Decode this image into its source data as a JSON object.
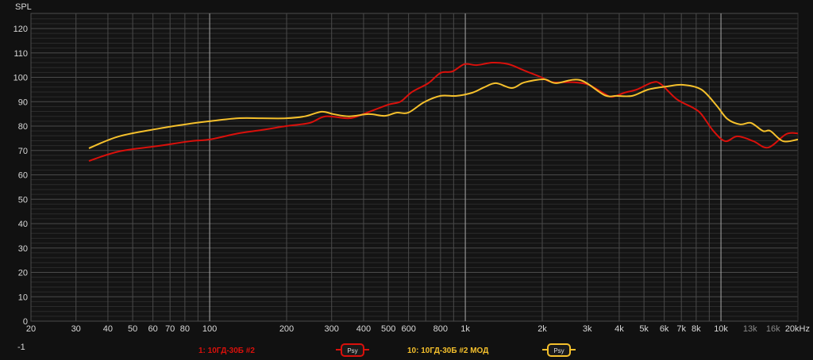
{
  "chart_data": {
    "type": "line",
    "ylabel": "SPL",
    "x_scale": "log",
    "xlim": [
      20,
      20000
    ],
    "ylim": [
      0,
      126
    ],
    "y_ticks": [
      0,
      10,
      20,
      30,
      40,
      50,
      60,
      70,
      80,
      90,
      100,
      110,
      120
    ],
    "y_extra_label": "-1",
    "x_ticks": [
      {
        "v": 20,
        "l": "20"
      },
      {
        "v": 30,
        "l": "30"
      },
      {
        "v": 40,
        "l": "40"
      },
      {
        "v": 50,
        "l": "50"
      },
      {
        "v": 60,
        "l": "60"
      },
      {
        "v": 70,
        "l": "70"
      },
      {
        "v": 80,
        "l": "80"
      },
      {
        "v": 100,
        "l": "100"
      },
      {
        "v": 200,
        "l": "200"
      },
      {
        "v": 300,
        "l": "300"
      },
      {
        "v": 400,
        "l": "400"
      },
      {
        "v": 500,
        "l": "500"
      },
      {
        "v": 600,
        "l": "600"
      },
      {
        "v": 800,
        "l": "800"
      },
      {
        "v": 1000,
        "l": "1k"
      },
      {
        "v": 2000,
        "l": "2k"
      },
      {
        "v": 3000,
        "l": "3k"
      },
      {
        "v": 4000,
        "l": "4k"
      },
      {
        "v": 5000,
        "l": "5k"
      },
      {
        "v": 6000,
        "l": "6k"
      },
      {
        "v": 7000,
        "l": "7k"
      },
      {
        "v": 8000,
        "l": "8k"
      },
      {
        "v": 10000,
        "l": "10k"
      },
      {
        "v": 13000,
        "l": "13k",
        "dim": true
      },
      {
        "v": 16000,
        "l": "16k",
        "dim": true
      },
      {
        "v": 20000,
        "l": "20kHz"
      }
    ],
    "grid": true,
    "legend_position": "bottom",
    "series": [
      {
        "name": "1: 10ГД-30Б #2",
        "color": "#d9100b",
        "badge": "Psy",
        "x": [
          33.7,
          44.2,
          63.5,
          84,
          100,
          129,
          160,
          199,
          246,
          284,
          351,
          405,
          500,
          557,
          619,
          717,
          800,
          890,
          993,
          1108,
          1276,
          1474,
          1700,
          1964,
          2190,
          2621,
          3026,
          3500,
          3758,
          4200,
          4690,
          5400,
          5820,
          6720,
          7780,
          8380,
          9340,
          10400,
          11600,
          13400,
          15300,
          18000,
          20000
        ],
        "y": [
          65.7,
          69.6,
          71.9,
          73.8,
          74.5,
          77,
          78.4,
          80,
          81.3,
          84,
          83.2,
          85.2,
          88.8,
          90,
          94,
          97.6,
          101.8,
          102.4,
          105.4,
          105,
          106,
          105.4,
          102.8,
          100.2,
          98,
          98,
          97,
          93.3,
          92,
          93.7,
          95,
          97.9,
          97.2,
          91,
          87.5,
          84.9,
          78,
          73.8,
          75.8,
          73.8,
          71.2,
          76.7,
          77
        ]
      },
      {
        "name": "10: 10ГД-30Б #2 МОД",
        "color": "#f5c02c",
        "badge": "Psy",
        "x": [
          33.7,
          44.2,
          63.5,
          84,
          100,
          129,
          160,
          199,
          236,
          274,
          305,
          351,
          419,
          484,
          538,
          598,
          690,
          800,
          923,
          1066,
          1185,
          1318,
          1522,
          1700,
          2030,
          2262,
          2805,
          3500,
          3900,
          4500,
          5200,
          6190,
          7100,
          8380,
          9600,
          10600,
          11900,
          13100,
          14600,
          15600,
          17500,
          20000
        ],
        "y": [
          70.9,
          75.8,
          79,
          81,
          82,
          83.2,
          83.2,
          83.2,
          84,
          85.9,
          84.9,
          84,
          84.9,
          84.2,
          85.5,
          85.5,
          89.8,
          92.4,
          92.4,
          93.7,
          95.9,
          97.6,
          95.6,
          97.9,
          99.2,
          97.6,
          98.9,
          92.7,
          92.4,
          92.4,
          95,
          96.3,
          96.9,
          95,
          88.5,
          82.9,
          80.7,
          81.3,
          78,
          78,
          73.8,
          74.5
        ]
      }
    ]
  }
}
